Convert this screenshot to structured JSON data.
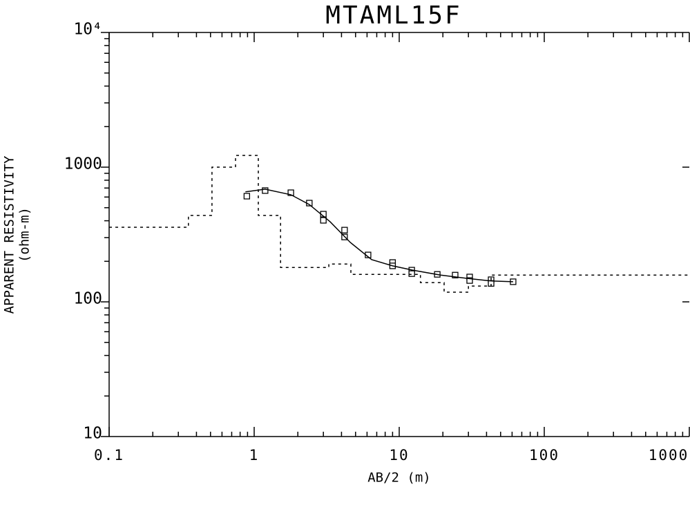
{
  "chart_data": {
    "type": "line",
    "title": "MTAML15F",
    "x_label": "AB/2 (m)",
    "y_label": "APPARENT RESISTIVITY",
    "y_label_unit": "(ohm-m)",
    "x_scale": "log",
    "y_scale": "log",
    "xlim": [
      0.1,
      1000
    ],
    "ylim": [
      10,
      10000
    ],
    "xticks": [
      0.1,
      1,
      10,
      100,
      1000
    ],
    "yticks": [
      10,
      100,
      1000,
      {
        "value": 10000,
        "label": "10⁴"
      }
    ],
    "series": [
      {
        "style": "markers",
        "color": "#000000",
        "x": [
          0.89,
          1.19,
          1.79,
          2.4,
          3.0,
          3.0,
          4.2,
          4.2,
          6.1,
          9.0,
          9.0,
          12.2,
          12.2,
          18.3,
          24.3,
          30.6,
          30.6,
          43,
          43,
          61
        ],
        "values": [
          609,
          670,
          646,
          541,
          448,
          403,
          341,
          303,
          223,
          196,
          185,
          172,
          162,
          160,
          158,
          153,
          144,
          146,
          137,
          141
        ]
      },
      {
        "style": "solid",
        "color": "#000000",
        "x": [
          0.87,
          1.19,
          1.79,
          2.4,
          3.34,
          4.6,
          6.45,
          9,
          12.4,
          19.3,
          30,
          43,
          61
        ],
        "values": [
          656,
          686,
          624,
          528,
          393,
          276,
          206,
          185,
          172,
          158,
          149,
          143,
          141
        ]
      },
      {
        "style": "dashed",
        "color": "#000000",
        "x": [
          0.1,
          0.352,
          0.352,
          0.512,
          0.512,
          0.744,
          0.744,
          1.068,
          1.068,
          1.52,
          1.52,
          3.27,
          3.27,
          4.64,
          4.64,
          14,
          14,
          20.4,
          20.4,
          30,
          30,
          43,
          43,
          1000
        ],
        "values": [
          358,
          358,
          438,
          438,
          1000,
          1000,
          1222,
          1222,
          438,
          438,
          180,
          180,
          191,
          191,
          160,
          160,
          139,
          139,
          118,
          118,
          131,
          131,
          158,
          158
        ]
      }
    ]
  }
}
